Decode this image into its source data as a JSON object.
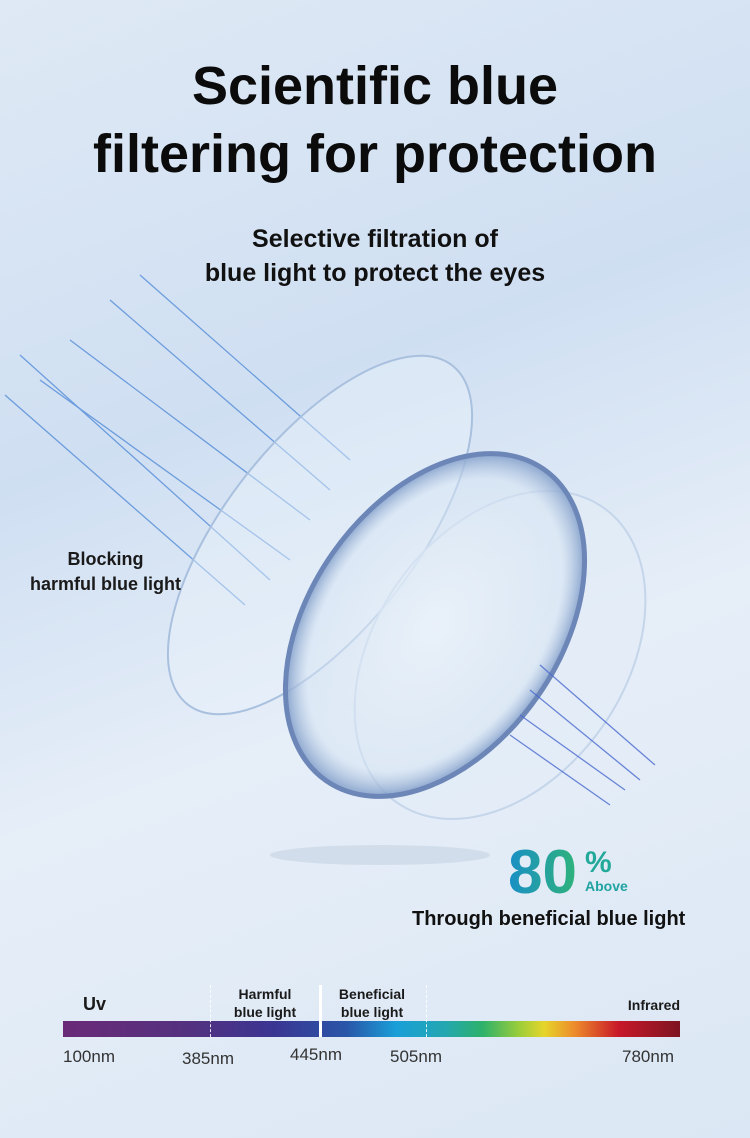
{
  "header": {
    "title_line1": "Scientific blue",
    "title_line2": "filtering for protection",
    "subtitle_line1": "Selective filtration of",
    "subtitle_line2": "blue light to protect the eyes"
  },
  "callout": {
    "line1": "Blocking",
    "line2": "harmful blue light"
  },
  "stat": {
    "value": "80",
    "unit": "%",
    "qualifier": "Above",
    "caption": "Through beneficial blue light",
    "colors": [
      "#1a8fc6",
      "#2eb37a"
    ]
  },
  "spectrum": {
    "labels": {
      "uv": "Uv",
      "harmful_1": "Harmful",
      "harmful_2": "blue light",
      "beneficial_1": "Beneficial",
      "beneficial_2": "blue light",
      "infrared": "Infrared"
    },
    "ticks": [
      "100nm",
      "385nm",
      "445nm",
      "505nm",
      "780nm"
    ]
  }
}
